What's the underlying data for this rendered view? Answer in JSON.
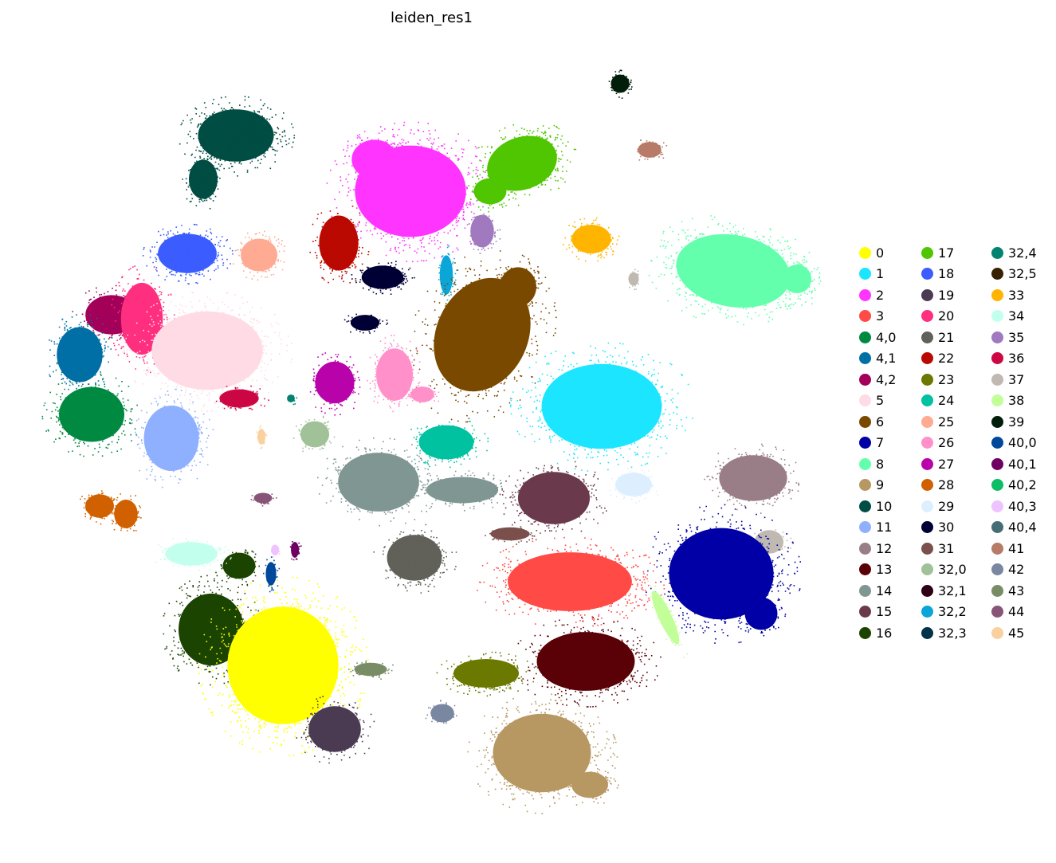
{
  "chart_data": {
    "type": "scatter",
    "title": "leiden_res1",
    "xlabel": "",
    "ylabel": "",
    "grid": false,
    "axes_visible": false,
    "legend_placement": "right",
    "legend_columns": 3,
    "series": [
      {
        "name": "0",
        "color": "#ffff00"
      },
      {
        "name": "1",
        "color": "#1ce6ff"
      },
      {
        "name": "2",
        "color": "#ff34ff"
      },
      {
        "name": "3",
        "color": "#ff4a46"
      },
      {
        "name": "4,0",
        "color": "#008941"
      },
      {
        "name": "4,1",
        "color": "#006fa6"
      },
      {
        "name": "4,2",
        "color": "#a30059"
      },
      {
        "name": "5",
        "color": "#ffdbe5"
      },
      {
        "name": "6",
        "color": "#7a4900"
      },
      {
        "name": "7",
        "color": "#0000a6"
      },
      {
        "name": "8",
        "color": "#63ffac"
      },
      {
        "name": "9",
        "color": "#b79762"
      },
      {
        "name": "10",
        "color": "#004d43"
      },
      {
        "name": "11",
        "color": "#8fb0ff"
      },
      {
        "name": "12",
        "color": "#997d87"
      },
      {
        "name": "13",
        "color": "#5a0007"
      },
      {
        "name": "14",
        "color": "#809693"
      },
      {
        "name": "15",
        "color": "#6a3a4c"
      },
      {
        "name": "16",
        "color": "#1b4400"
      },
      {
        "name": "17",
        "color": "#4fc601"
      },
      {
        "name": "18",
        "color": "#3b5dff"
      },
      {
        "name": "19",
        "color": "#4a3b53"
      },
      {
        "name": "20",
        "color": "#ff2f80"
      },
      {
        "name": "21",
        "color": "#61615a"
      },
      {
        "name": "22",
        "color": "#ba0900"
      },
      {
        "name": "23",
        "color": "#6b7900"
      },
      {
        "name": "24",
        "color": "#00c2a0"
      },
      {
        "name": "25",
        "color": "#ffaa92"
      },
      {
        "name": "26",
        "color": "#ff90c9"
      },
      {
        "name": "27",
        "color": "#b903aa"
      },
      {
        "name": "28",
        "color": "#d16100"
      },
      {
        "name": "29",
        "color": "#ddefff"
      },
      {
        "name": "30",
        "color": "#000035"
      },
      {
        "name": "31",
        "color": "#7b4f4b"
      },
      {
        "name": "32,0",
        "color": "#a1c299"
      },
      {
        "name": "32,1",
        "color": "#300018"
      },
      {
        "name": "32,2",
        "color": "#0aa6d8"
      },
      {
        "name": "32,3",
        "color": "#013349"
      },
      {
        "name": "32,4",
        "color": "#00846f"
      },
      {
        "name": "32,5",
        "color": "#372101"
      },
      {
        "name": "33",
        "color": "#ffb500"
      },
      {
        "name": "34",
        "color": "#c2ffed"
      },
      {
        "name": "35",
        "color": "#a079bf"
      },
      {
        "name": "36",
        "color": "#cc0744"
      },
      {
        "name": "37",
        "color": "#c0b9b2"
      },
      {
        "name": "38",
        "color": "#c2ff99"
      },
      {
        "name": "39",
        "color": "#001e09"
      },
      {
        "name": "40,0",
        "color": "#00489c"
      },
      {
        "name": "40,1",
        "color": "#6f0062"
      },
      {
        "name": "40,2",
        "color": "#0cbd66"
      },
      {
        "name": "40,3",
        "color": "#eec3ff"
      },
      {
        "name": "40,4",
        "color": "#456d75"
      },
      {
        "name": "41",
        "color": "#b77b68"
      },
      {
        "name": "42",
        "color": "#7a87a1"
      },
      {
        "name": "43",
        "color": "#788d66"
      },
      {
        "name": "44",
        "color": "#885578"
      },
      {
        "name": "45",
        "color": "#fad09f"
      }
    ]
  }
}
